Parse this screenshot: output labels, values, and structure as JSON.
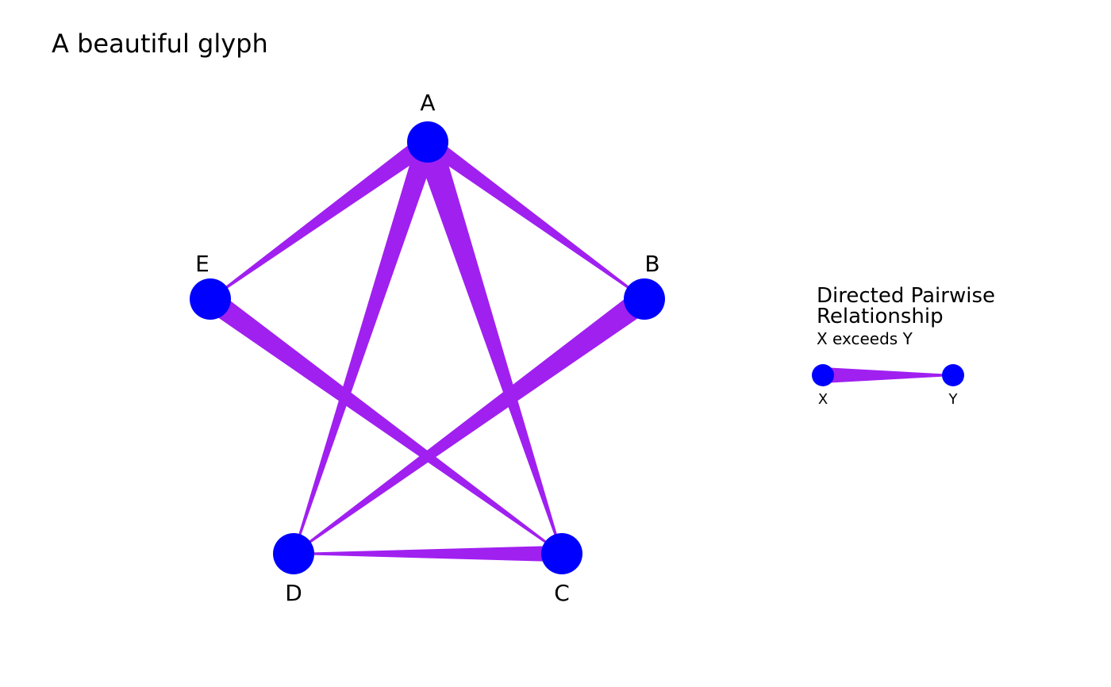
{
  "title": "A beautiful glyph",
  "colors": {
    "node": "#0000FF",
    "edge": "#A020F0",
    "background": "#FFFFFF"
  },
  "nodes": [
    {
      "id": "A",
      "label": "A"
    },
    {
      "id": "B",
      "label": "B"
    },
    {
      "id": "C",
      "label": "C"
    },
    {
      "id": "D",
      "label": "D"
    },
    {
      "id": "E",
      "label": "E"
    }
  ],
  "edges": [
    {
      "from": "A",
      "to": "E",
      "strength": 0.7
    },
    {
      "from": "A",
      "to": "B",
      "strength": 0.6
    },
    {
      "from": "A",
      "to": "D",
      "strength": 0.8
    },
    {
      "from": "A",
      "to": "C",
      "strength": 1.0
    },
    {
      "from": "E",
      "to": "C",
      "strength": 0.8
    },
    {
      "from": "B",
      "to": "D",
      "strength": 0.9
    },
    {
      "from": "C",
      "to": "D",
      "strength": 0.6
    }
  ],
  "legend": {
    "title_line1": "Directed Pairwise",
    "title_line2": "Relationship",
    "subtitle": "X exceeds Y",
    "from_label": "X",
    "to_label": "Y"
  }
}
